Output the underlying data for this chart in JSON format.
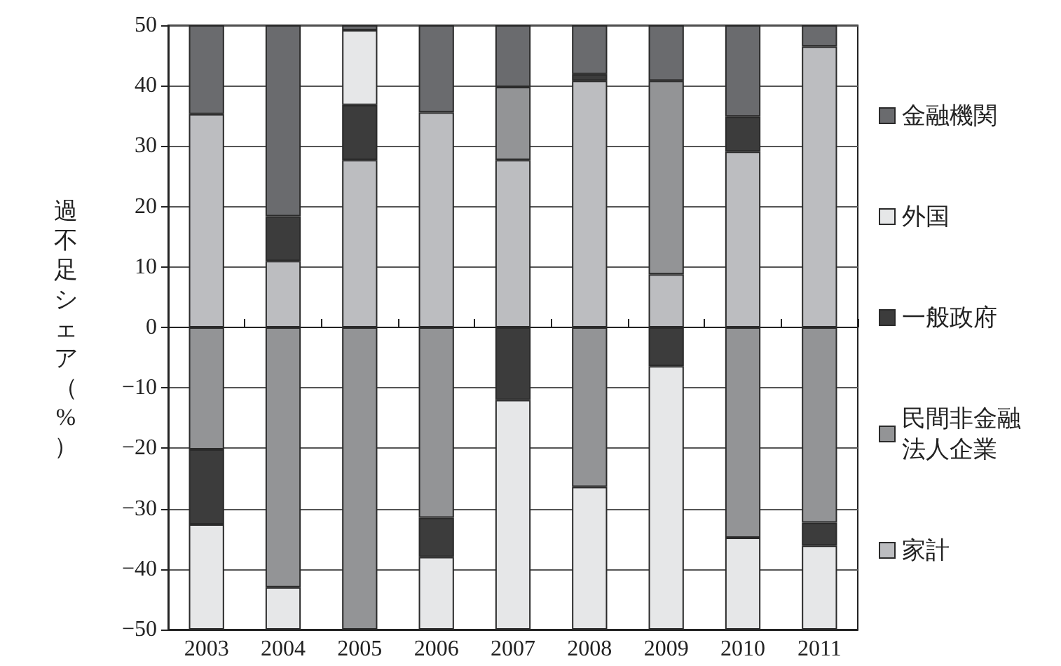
{
  "chart_data": {
    "type": "bar",
    "stacked": true,
    "ylabel": "過不足シェア（%）",
    "categories": [
      "2003",
      "2004",
      "2005",
      "2006",
      "2007",
      "2008",
      "2009",
      "2010",
      "2011"
    ],
    "series": [
      {
        "name": "家計",
        "color": "#bcbdc0",
        "values": [
          35.3,
          11.0,
          27.7,
          35.6,
          27.7,
          40.8,
          8.8,
          29.1,
          46.5
        ]
      },
      {
        "name": "民間非金融法人企業",
        "color": "#939496",
        "values": [
          -20.2,
          -43.0,
          -50,
          -31.5,
          12.1,
          -26.4,
          32.0,
          -34.8,
          -32.3
        ]
      },
      {
        "name": "一般政府",
        "color": "#3c3c3c",
        "values": [
          -12.4,
          7.4,
          9.1,
          -6.5,
          -12.0,
          1.1,
          -6.4,
          5.8,
          -3.8
        ]
      },
      {
        "name": "外国",
        "color": "#e6e7e8",
        "values": [
          -17.4,
          -7.0,
          12.4,
          -12.0,
          -38.0,
          -23.6,
          -43.6,
          -15.2,
          -13.9
        ]
      },
      {
        "name": "金融機関",
        "color": "#6a6b6e",
        "values": [
          14.7,
          31.6,
          0.8,
          14.4,
          10.2,
          8.1,
          9.2,
          15.1,
          3.5
        ]
      }
    ],
    "ylim": [
      -50,
      50
    ],
    "yticks": [
      -50,
      -40,
      -30,
      -20,
      -10,
      0,
      10,
      20,
      30,
      40,
      50
    ],
    "grid": "y",
    "legend": "right"
  }
}
